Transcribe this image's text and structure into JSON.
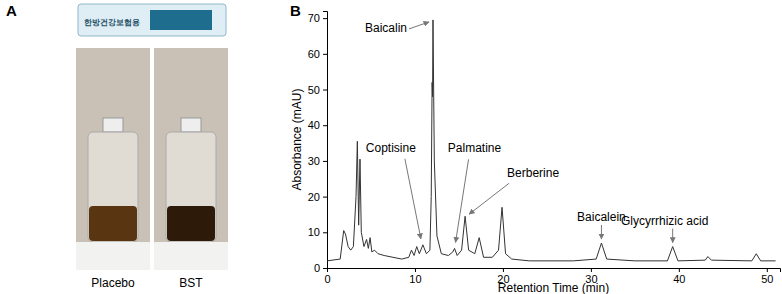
{
  "figure": {
    "panels": [
      "A",
      "B"
    ],
    "packet_text": "한방건강보험용",
    "bottles": [
      "Placebo",
      "BST"
    ]
  },
  "chart_data": {
    "type": "line",
    "x_label": "Retention Time (min)",
    "y_label": "Absorbance (mAU)",
    "x": [
      0,
      1.5,
      1.9,
      2.1,
      2.4,
      2.7,
      3.0,
      3.3,
      3.45,
      3.6,
      3.75,
      3.9,
      4.2,
      4.5,
      4.7,
      4.9,
      5.1,
      5.4,
      5.8,
      6.5,
      7.5,
      8.5,
      9.3,
      9.6,
      9.9,
      10.2,
      10.5,
      10.9,
      11.3,
      11.7,
      11.85,
      11.95,
      12.0,
      12.05,
      12.2,
      12.5,
      13.0,
      13.8,
      14.3,
      14.5,
      14.8,
      15.3,
      15.7,
      16.1,
      16.8,
      17.3,
      17.8,
      18.8,
      19.5,
      19.9,
      20.3,
      21.0,
      23.0,
      28.0,
      30.6,
      31.2,
      31.8,
      35.0,
      38.7,
      39.3,
      39.9,
      43.0,
      43.3,
      43.7,
      48.3,
      48.8,
      49.3,
      51.0
    ],
    "values": [
      2,
      2.5,
      10.5,
      9.5,
      6,
      5,
      6,
      20,
      35.5,
      12,
      30.5,
      10,
      6,
      8,
      5.5,
      8.5,
      4.5,
      5,
      4,
      3.5,
      3,
      2.5,
      3,
      5,
      3.5,
      6,
      4,
      6.5,
      4,
      5,
      20,
      52,
      48,
      69.5,
      30,
      9,
      4,
      3.5,
      4.5,
      5.5,
      3.5,
      5,
      14.5,
      5,
      4,
      8.5,
      3,
      3,
      5,
      17,
      4,
      2.5,
      2,
      2,
      2.5,
      7,
      2.5,
      2,
      2,
      6,
      2,
      2.2,
      3.2,
      2.2,
      2,
      4,
      2,
      2
    ],
    "color": "#333333",
    "xlim": [
      0,
      51.5
    ],
    "xticks": [
      0,
      10,
      20,
      30,
      40,
      50
    ],
    "ylim": [
      0,
      72
    ],
    "yticks": [
      0,
      10,
      20,
      30,
      40,
      50,
      60,
      70
    ],
    "annotations": [
      {
        "text": "Baicalin",
        "x": 12.05,
        "y": 69.5
      },
      {
        "text": "Coptisine",
        "x": 10.9,
        "y": 6.5
      },
      {
        "text": "Palmatine",
        "x": 14.5,
        "y": 5.5
      },
      {
        "text": "Berberine",
        "x": 15.7,
        "y": 14.5
      },
      {
        "text": "Baicalein",
        "x": 31.2,
        "y": 7
      },
      {
        "text": "Glycyrrhizic acid",
        "x": 39.3,
        "y": 6
      }
    ]
  }
}
